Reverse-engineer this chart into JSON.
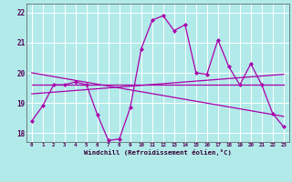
{
  "xlabel": "Windchill (Refroidissement éolien,°C)",
  "background_color": "#b2eaea",
  "grid_color": "#ffffff",
  "line_color": "#aa00aa",
  "xlim": [
    -0.5,
    23.5
  ],
  "ylim": [
    17.7,
    22.3
  ],
  "yticks": [
    18,
    19,
    20,
    21,
    22
  ],
  "xticks": [
    0,
    1,
    2,
    3,
    4,
    5,
    6,
    7,
    8,
    9,
    10,
    11,
    12,
    13,
    14,
    15,
    16,
    17,
    18,
    19,
    20,
    21,
    22,
    23
  ],
  "series": {
    "main": {
      "x": [
        0,
        1,
        2,
        3,
        4,
        5,
        6,
        7,
        8,
        9,
        10,
        11,
        12,
        13,
        14,
        15,
        16,
        17,
        18,
        19,
        20,
        21,
        22,
        23
      ],
      "y": [
        18.4,
        18.9,
        19.6,
        19.6,
        19.7,
        19.6,
        18.6,
        17.75,
        17.8,
        18.85,
        20.8,
        21.75,
        21.9,
        21.4,
        21.6,
        20.0,
        19.95,
        21.1,
        20.2,
        19.6,
        20.3,
        19.6,
        18.65,
        18.2
      ]
    },
    "trend1": {
      "x": [
        0,
        23
      ],
      "y": [
        19.6,
        19.6
      ]
    },
    "trend2": {
      "x": [
        0,
        23
      ],
      "y": [
        19.3,
        19.95
      ]
    },
    "trend3": {
      "x": [
        0,
        23
      ],
      "y": [
        20.0,
        18.55
      ]
    }
  }
}
